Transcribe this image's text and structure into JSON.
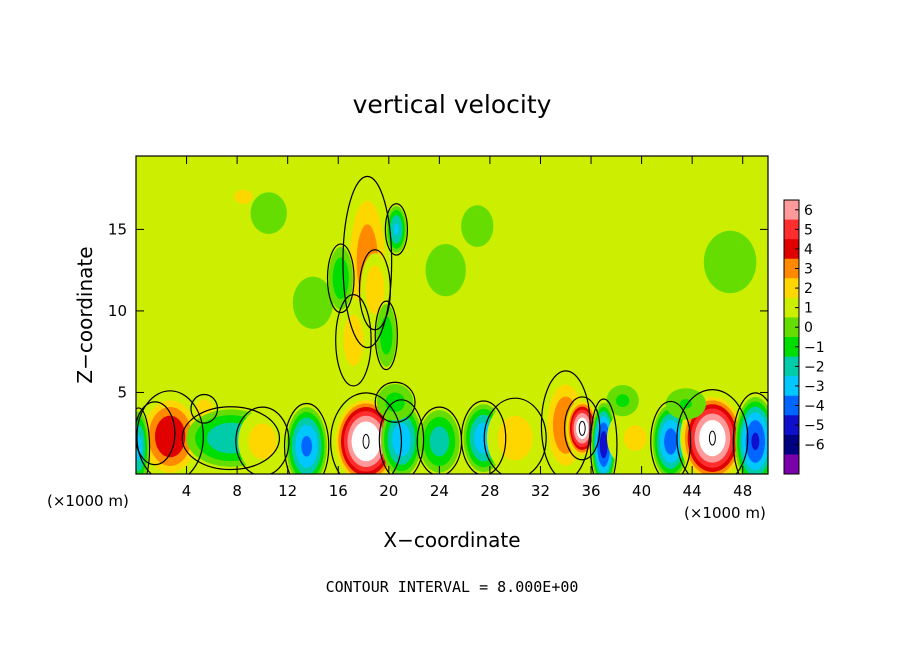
{
  "chart_data": {
    "type": "heatmap",
    "title": "vertical velocity",
    "xlabel": "X−coordinate",
    "ylabel": "Z−coordinate",
    "x_unit_left": "(×1000 m)",
    "x_unit_right": "(×1000 m)",
    "footer": "CONTOUR INTERVAL = 8.000E+00",
    "xlim": [
      0,
      50
    ],
    "ylim": [
      0,
      19.5
    ],
    "x_ticks": [
      4,
      8,
      12,
      16,
      20,
      24,
      28,
      32,
      36,
      40,
      44,
      48
    ],
    "y_ticks": [
      5,
      10,
      15
    ],
    "colorbar": {
      "labels": [
        "6",
        "5",
        "4",
        "3",
        "2",
        "1",
        "0",
        "−1",
        "−2",
        "−3",
        "−4",
        "−5",
        "−6"
      ],
      "colors": [
        "#ff9a9a",
        "#ff2e2e",
        "#e00000",
        "#ff8a00",
        "#ffd700",
        "#ccee00",
        "#66dd00",
        "#00dd00",
        "#00ccaa",
        "#00c8ff",
        "#0066ff",
        "#1010cc",
        "#000080",
        "#7a00aa"
      ]
    },
    "background_value": 0.4,
    "features": [
      {
        "x": 1.5,
        "z": 2.5,
        "sx": 0.9,
        "sz": 1.1,
        "value": 3.2
      },
      {
        "x": 2.7,
        "z": 2.3,
        "sx": 1.5,
        "sz": 1.6,
        "value": 4.0
      },
      {
        "x": 5.4,
        "z": 4.0,
        "sx": 0.6,
        "sz": 0.5,
        "value": 2.0
      },
      {
        "x": 7.5,
        "z": 2.2,
        "sx": 2.2,
        "sz": 1.1,
        "value": -2.8
      },
      {
        "x": 10.0,
        "z": 2.0,
        "sx": 1.2,
        "sz": 1.2,
        "value": 1.5
      },
      {
        "x": 13.5,
        "z": 1.7,
        "sx": 1.0,
        "sz": 1.5,
        "value": -4.3
      },
      {
        "x": 18.2,
        "z": 2.0,
        "sx": 1.6,
        "sz": 1.7,
        "value": 7.5
      },
      {
        "x": 21.0,
        "z": 2.1,
        "sx": 1.0,
        "sz": 1.4,
        "value": -3.8
      },
      {
        "x": 24.0,
        "z": 2.0,
        "sx": 1.0,
        "sz": 1.2,
        "value": -2.6
      },
      {
        "x": 27.5,
        "z": 2.2,
        "sx": 1.0,
        "sz": 1.3,
        "value": -3.8
      },
      {
        "x": 30.0,
        "z": 2.2,
        "sx": 1.4,
        "sz": 1.4,
        "value": 1.6
      },
      {
        "x": 34.0,
        "z": 3.0,
        "sx": 1.1,
        "sz": 1.9,
        "value": 3.0
      },
      {
        "x": 35.3,
        "z": 2.8,
        "sx": 0.8,
        "sz": 1.1,
        "value": 7.0
      },
      {
        "x": 37.0,
        "z": 1.8,
        "sx": 0.6,
        "sz": 1.6,
        "value": -5.6
      },
      {
        "x": 39.5,
        "z": 2.2,
        "sx": 1.4,
        "sz": 1.2,
        "value": 1.2
      },
      {
        "x": 42.3,
        "z": 2.0,
        "sx": 0.9,
        "sz": 1.4,
        "value": -4.6
      },
      {
        "x": 45.6,
        "z": 2.2,
        "sx": 1.6,
        "sz": 1.7,
        "value": 7.2
      },
      {
        "x": 49.0,
        "z": 2.0,
        "sx": 1.0,
        "sz": 1.7,
        "value": -5.2
      },
      {
        "x": 0.2,
        "z": 1.6,
        "sx": 0.5,
        "sz": 1.4,
        "value": -3.4
      },
      {
        "x": 18.3,
        "z": 13.0,
        "sx": 1.1,
        "sz": 3.0,
        "value": 2.6
      },
      {
        "x": 18.9,
        "z": 11.3,
        "sx": 0.7,
        "sz": 1.4,
        "value": 1.8
      },
      {
        "x": 20.6,
        "z": 15.0,
        "sx": 0.5,
        "sz": 0.9,
        "value": -3.2
      },
      {
        "x": 17.2,
        "z": 8.2,
        "sx": 0.8,
        "sz": 1.6,
        "value": 1.6
      },
      {
        "x": 16.2,
        "z": 12.0,
        "sx": 0.6,
        "sz": 1.2,
        "value": -1.8
      },
      {
        "x": 19.8,
        "z": 8.5,
        "sx": 0.5,
        "sz": 1.2,
        "value": -1.6
      },
      {
        "x": 20.5,
        "z": 4.4,
        "sx": 0.9,
        "sz": 0.7,
        "value": -1.4
      },
      {
        "x": 43.5,
        "z": 4.3,
        "sx": 1.0,
        "sz": 0.6,
        "value": -1.1
      },
      {
        "x": 38.5,
        "z": 4.5,
        "sx": 0.8,
        "sz": 0.6,
        "value": -1.2
      },
      {
        "x": 8.5,
        "z": 17.0,
        "sx": 1.5,
        "sz": 0.9,
        "value": 1.1
      },
      {
        "x": 2.5,
        "z": 15.5,
        "sx": 1.2,
        "sz": 1.0,
        "value": 0.9
      },
      {
        "x": 27.0,
        "z": 15.2,
        "sx": 0.8,
        "sz": 0.8,
        "value": -0.9
      },
      {
        "x": 10.5,
        "z": 16.0,
        "sx": 0.9,
        "sz": 0.8,
        "value": -0.8
      },
      {
        "x": 31.0,
        "z": 13.5,
        "sx": 1.2,
        "sz": 1.0,
        "value": 0.8
      },
      {
        "x": 24.5,
        "z": 12.5,
        "sx": 1.0,
        "sz": 1.0,
        "value": -0.7
      },
      {
        "x": 47.0,
        "z": 13.0,
        "sx": 1.3,
        "sz": 1.2,
        "value": -0.7
      },
      {
        "x": 14.0,
        "z": 10.5,
        "sx": 1.0,
        "sz": 1.0,
        "value": -0.6
      },
      {
        "x": 5.5,
        "z": 9.5,
        "sx": 1.0,
        "sz": 1.0,
        "value": 0.9
      }
    ]
  }
}
